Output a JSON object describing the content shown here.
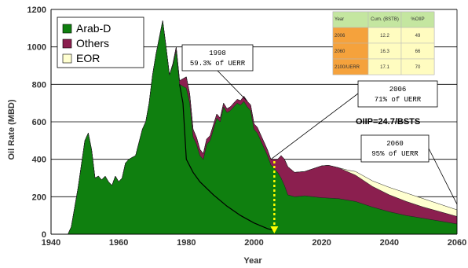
{
  "chart_data": {
    "type": "area",
    "xlabel": "Year",
    "ylabel": "Oil Rate (MBD)",
    "xlim": [
      1940,
      2060
    ],
    "ylim": [
      0,
      1200
    ],
    "xticks": [
      "1940",
      "1960",
      "1980",
      "2000",
      "2020",
      "2040",
      "2060"
    ],
    "yticks": [
      "0",
      "200",
      "400",
      "600",
      "800",
      "1000",
      "1200"
    ],
    "grid": "horizontal",
    "legend_placement": "top-left",
    "stacking": "stacked",
    "series": [
      {
        "name": "Arab-D",
        "color": "#0f7f0f",
        "points": [
          [
            1940,
            0
          ],
          [
            1945,
            0
          ],
          [
            1946,
            40
          ],
          [
            1948,
            250
          ],
          [
            1950,
            500
          ],
          [
            1951,
            540
          ],
          [
            1952,
            450
          ],
          [
            1953,
            300
          ],
          [
            1954,
            310
          ],
          [
            1955,
            290
          ],
          [
            1956,
            310
          ],
          [
            1957,
            280
          ],
          [
            1958,
            260
          ],
          [
            1959,
            310
          ],
          [
            1960,
            280
          ],
          [
            1961,
            300
          ],
          [
            1962,
            380
          ],
          [
            1963,
            400
          ],
          [
            1964,
            410
          ],
          [
            1965,
            420
          ],
          [
            1967,
            560
          ],
          [
            1968,
            600
          ],
          [
            1969,
            700
          ],
          [
            1970,
            850
          ],
          [
            1971,
            960
          ],
          [
            1972,
            1050
          ],
          [
            1973,
            1140
          ],
          [
            1974,
            1000
          ],
          [
            1975,
            850
          ],
          [
            1976,
            900
          ],
          [
            1977,
            980
          ],
          [
            1978,
            800
          ],
          [
            1979,
            790
          ],
          [
            1980,
            780
          ],
          [
            1981,
            700
          ],
          [
            1982,
            520
          ],
          [
            1983,
            480
          ],
          [
            1984,
            420
          ],
          [
            1985,
            400
          ],
          [
            1986,
            480
          ],
          [
            1987,
            500
          ],
          [
            1988,
            560
          ],
          [
            1989,
            620
          ],
          [
            1990,
            600
          ],
          [
            1991,
            680
          ],
          [
            1992,
            650
          ],
          [
            1993,
            660
          ],
          [
            1994,
            680
          ],
          [
            1995,
            700
          ],
          [
            1996,
            690
          ],
          [
            1997,
            710
          ],
          [
            1998,
            680
          ],
          [
            1999,
            660
          ],
          [
            2000,
            560
          ],
          [
            2001,
            540
          ],
          [
            2002,
            500
          ],
          [
            2003,
            460
          ],
          [
            2004,
            420
          ],
          [
            2005,
            370
          ],
          [
            2006,
            350
          ],
          [
            2007,
            330
          ],
          [
            2008,
            300
          ],
          [
            2009,
            260
          ],
          [
            2010,
            210
          ],
          [
            2012,
            200
          ],
          [
            2015,
            205
          ],
          [
            2020,
            195
          ],
          [
            2025,
            190
          ],
          [
            2030,
            175
          ],
          [
            2035,
            145
          ],
          [
            2040,
            120
          ],
          [
            2045,
            100
          ],
          [
            2050,
            85
          ],
          [
            2055,
            70
          ],
          [
            2060,
            55
          ]
        ]
      },
      {
        "name": "Others",
        "color": "#8b1f4f",
        "points": [
          [
            1940,
            0
          ],
          [
            1975,
            0
          ],
          [
            1977,
            20
          ],
          [
            1978,
            20
          ],
          [
            1980,
            60
          ],
          [
            1982,
            40
          ],
          [
            1985,
            30
          ],
          [
            1990,
            20
          ],
          [
            1995,
            20
          ],
          [
            1998,
            30
          ],
          [
            2000,
            30
          ],
          [
            2003,
            30
          ],
          [
            2005,
            30
          ],
          [
            2007,
            70
          ],
          [
            2008,
            120
          ],
          [
            2009,
            140
          ],
          [
            2010,
            150
          ],
          [
            2012,
            130
          ],
          [
            2015,
            130
          ],
          [
            2020,
            170
          ],
          [
            2022,
            175
          ],
          [
            2025,
            165
          ],
          [
            2030,
            140
          ],
          [
            2035,
            110
          ],
          [
            2040,
            90
          ],
          [
            2045,
            75
          ],
          [
            2050,
            60
          ],
          [
            2055,
            50
          ],
          [
            2060,
            40
          ]
        ]
      },
      {
        "name": "EOR",
        "color": "#ffffd0",
        "points": [
          [
            1940,
            0
          ],
          [
            2025,
            0
          ],
          [
            2028,
            10
          ],
          [
            2030,
            20
          ],
          [
            2035,
            30
          ],
          [
            2040,
            40
          ],
          [
            2045,
            45
          ],
          [
            2050,
            45
          ],
          [
            2055,
            40
          ],
          [
            2060,
            35
          ]
        ]
      }
    ],
    "decline_curve": [
      [
        1978,
        800
      ],
      [
        1979,
        700
      ],
      [
        1980,
        400
      ],
      [
        1982,
        330
      ],
      [
        1984,
        280
      ],
      [
        1988,
        210
      ],
      [
        1992,
        150
      ],
      [
        1996,
        100
      ],
      [
        2000,
        60
      ],
      [
        2004,
        30
      ],
      [
        2006,
        20
      ]
    ],
    "arrow": {
      "x": 2006,
      "from": 390,
      "to": 0,
      "color": "#ffff00"
    },
    "annotations": [
      {
        "line1": "1998",
        "line2": "59.3% of UERR",
        "target": [
          1998,
          710
        ]
      },
      {
        "line1": "2006",
        "line2": "71% of UERR",
        "target": [
          2005,
          400
        ]
      },
      {
        "line1": "2060",
        "line2": "95% of UERR",
        "target": [
          2060,
          160
        ]
      }
    ],
    "oiip_label": "OIIP=24.7/BSTS",
    "table": {
      "headers": [
        "Year",
        "Cum. (BSTB)",
        "%OIIP"
      ],
      "rows": [
        [
          "2006",
          "12.2",
          "49"
        ],
        [
          "2060",
          "16.3",
          "66"
        ],
        [
          "2100/UERR",
          "17.1",
          "70"
        ]
      ]
    }
  }
}
